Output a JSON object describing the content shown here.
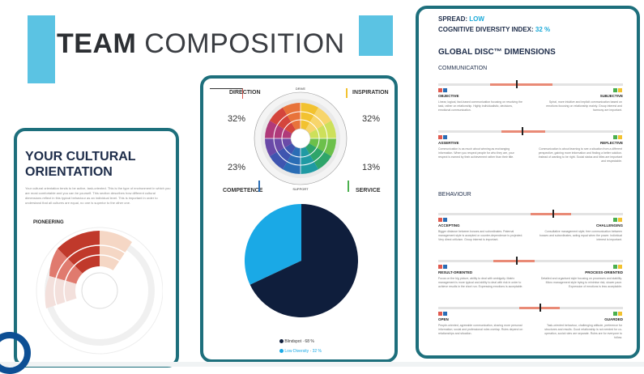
{
  "header": {
    "title_bold": "TEAM",
    "title_light": "COMPOSITION"
  },
  "cultural": {
    "title_line1": "YOUR CULTURAL",
    "title_line2": "ORIENTATION",
    "body": "Your cultural orientation tends to be active, task-oriented. This is the type of environment in which you are most comfortable and you can be yourself. This section describes how different cultural dimensions reflect in this typical behaviour as an individual level. This is important in order to understand that all cultures are equal, no one is superior to the other one.",
    "segment_label": "PIONEERING"
  },
  "wheel": {
    "quadrants": [
      {
        "label": "DIRECTION",
        "percent": "32%",
        "color": "#e05a4f"
      },
      {
        "label": "INSPIRATION",
        "percent": "32%",
        "color": "#f2c230"
      },
      {
        "label": "COMPETENCE",
        "percent": "23%",
        "color": "#2a6db5"
      },
      {
        "label": "SERVICE",
        "percent": "13%",
        "color": "#4cb04f"
      }
    ],
    "top_tick": "DRIVE",
    "bottom_tick": "SUPPORT"
  },
  "pie": {
    "chart_data": {
      "type": "pie",
      "labels": [
        "Blindspot",
        "Low Diversity"
      ],
      "values": [
        68,
        32
      ],
      "colors": [
        "#0f1e3c",
        "#1aa9e6"
      ]
    },
    "legend": [
      {
        "label": "Blindspot",
        "value": "68 %"
      },
      {
        "label": "Low Diversity",
        "value": "32 %"
      }
    ]
  },
  "diversity": {
    "spread_label": "SPREAD:",
    "spread_value": "LOW",
    "cdi_label": "COGNITIVE DIVERSITY INDEX:",
    "cdi_value": "32 %",
    "heading": "GLOBAL DISC™ DIMENSIONS",
    "section_communication": "COMMUNICATION",
    "section_behaviour": "BEHAVIOUR",
    "dimensions": [
      {
        "left": "OBJECTIVE",
        "right": "SUBJECTIVE",
        "pos": 0.42,
        "fill_start": 0.28,
        "fill_end": 0.62,
        "left_text": "Linear, logical, fact-based communication focusing on resolving the task, rather on relationship. Highly individualistic, decisions, emotional communication.",
        "right_text": "Spiral, more intuitive and implicit communication based on emotions focusing on relationship mainly. Group interest and harmony are important."
      },
      {
        "left": "ASSERTIVE",
        "right": "REFLECTIVE",
        "pos": 0.45,
        "fill_start": 0.34,
        "fill_end": 0.58,
        "left_text": "Communication is as much about winning as exchanging information. When you respect people for who they are, your respect is earned by their achievement rather than their title.",
        "right_text": "Communication is about learning to see a situation from a different perspective, gaining more information and finding a better solution. Instead of wanting to be right. Social status and titles are important and respectable."
      },
      {
        "left": "ACCEPTING",
        "right": "CHALLENGING",
        "pos": 0.62,
        "fill_start": 0.5,
        "fill_end": 0.72,
        "left_text": "Bigger distance between bosses and subordinates. Paternal management style is accepted or counter-dependence is projected. Very direct criticism. Group interest is important.",
        "right_text": "Consultative management style; free communication between bosses and subordinates, acting equal when the power. Individual interest is important."
      },
      {
        "left": "RESULT-ORIENTED",
        "right": "PROCESS-ORIENTED",
        "pos": 0.42,
        "fill_start": 0.3,
        "fill_end": 0.52,
        "left_text": "Focus on the big picture, ability to deal with ambiguity. Matrix management is more typical and ability to deal with risk in order to achieve results in the short run. Expressing emotions is acceptable.",
        "right_text": "Detailed and organised style focusing on processes and stability. Micro management style trying to minimise risk, slower pace. Expression of emotions is less acceptable."
      },
      {
        "left": "OPEN",
        "right": "GUARDED",
        "pos": 0.55,
        "fill_start": 0.44,
        "fill_end": 0.66,
        "left_text": "People-oriented, agreeable communication, sharing more personal information; social and professional roles overlap. Rules depend on relationships and situation.",
        "right_text": "Task-oriented behaviour, challenging attitude, preference for structures and results. Good relationship is not needed for co-operation, social roles are separate. Rules are for everyone to follow."
      }
    ]
  }
}
